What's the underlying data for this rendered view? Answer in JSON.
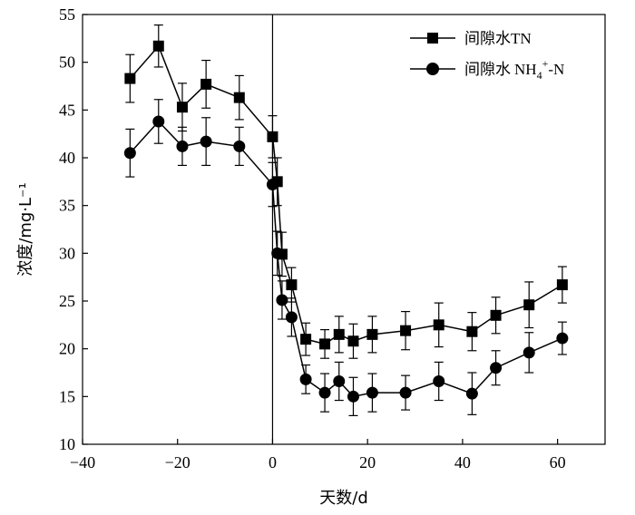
{
  "chart_data": {
    "type": "line",
    "xlabel": "天数/d",
    "ylabel": "浓度/mg·L⁻¹",
    "xlim": [
      -40,
      70
    ],
    "ylim": [
      10,
      55
    ],
    "xticks": [
      -40,
      -20,
      0,
      20,
      40,
      60
    ],
    "yticks": [
      10,
      15,
      20,
      25,
      30,
      35,
      40,
      45,
      50,
      55
    ],
    "reference_line_x": 0,
    "legend_position": "top-right",
    "x": [
      -30,
      -24,
      -19,
      -14,
      -7,
      0,
      1,
      2,
      4,
      7,
      11,
      14,
      17,
      21,
      28,
      35,
      42,
      47,
      54,
      61
    ],
    "series": [
      {
        "name": "间隙水TN",
        "legend_main": "间隙水",
        "legend_suffix": "TN",
        "marker": "square",
        "values": [
          48.3,
          51.7,
          45.3,
          47.7,
          46.3,
          42.2,
          37.5,
          29.9,
          26.7,
          21.0,
          20.5,
          21.5,
          20.8,
          21.5,
          21.9,
          22.5,
          21.8,
          23.5,
          24.6,
          26.7
        ],
        "errors": [
          2.5,
          2.2,
          2.5,
          2.5,
          2.3,
          2.2,
          2.5,
          2.3,
          1.8,
          1.7,
          1.5,
          1.9,
          1.8,
          1.9,
          2.0,
          2.3,
          2.0,
          1.9,
          2.4,
          1.9
        ]
      },
      {
        "name": "间隙水NH4+-N",
        "legend_main": "间隙水",
        "legend_suffix_parts": [
          "NH",
          "4",
          "+",
          "-N"
        ],
        "marker": "circle",
        "values": [
          40.5,
          43.8,
          41.2,
          41.7,
          41.2,
          37.2,
          30.0,
          25.1,
          23.3,
          16.8,
          15.4,
          16.6,
          15.0,
          15.4,
          15.4,
          16.6,
          15.3,
          18.0,
          19.6,
          21.1
        ],
        "errors": [
          2.5,
          2.3,
          2.0,
          2.5,
          2.0,
          2.3,
          2.3,
          2.0,
          2.0,
          1.5,
          2.0,
          2.0,
          2.0,
          2.0,
          1.8,
          2.0,
          2.2,
          1.8,
          2.1,
          1.7
        ]
      }
    ]
  }
}
